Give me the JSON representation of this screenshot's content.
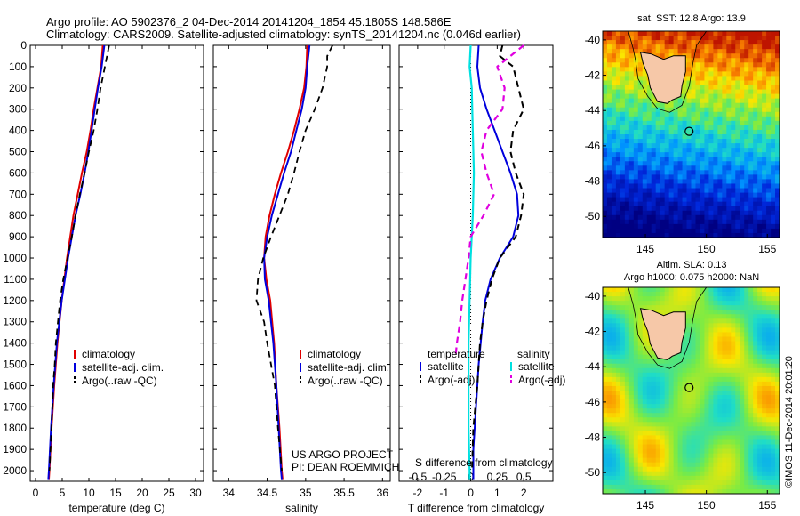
{
  "header": {
    "line1": "Argo profile: AO 5902376_2 04-Dec-2014 20141204_1854 45.1805S 148.586E",
    "line2": "Climatology: CARS2009. Satellite-adjusted climatology: synTS_20141204.nc (0.046d earlier)"
  },
  "depth_ticks": [
    0,
    100,
    200,
    300,
    400,
    500,
    600,
    700,
    800,
    900,
    1000,
    1100,
    1200,
    1300,
    1400,
    1500,
    1600,
    1700,
    1800,
    1900,
    2000
  ],
  "colors": {
    "climatology": "#e00000",
    "satellite": "#0000dd",
    "argo": "#000000",
    "sat_cyan": "#00e0e0",
    "argo_magenta": "#e000e0",
    "land": "#f6c8a8"
  },
  "chart_data": [
    {
      "id": "temperature",
      "type": "line",
      "xlabel": "temperature (deg C)",
      "xlim": [
        -1,
        31.5
      ],
      "ylim": [
        0,
        2050
      ],
      "y_reversed": true,
      "xticks": [
        0,
        5,
        10,
        15,
        20,
        25,
        30
      ],
      "legend": [
        "climatology",
        "satellite-adj. clim.",
        "Argo(..raw -QC)"
      ],
      "series": [
        {
          "name": "climatology",
          "depth": [
            0,
            100,
            200,
            300,
            400,
            500,
            600,
            700,
            800,
            900,
            1000,
            1200,
            1400,
            1600,
            1800,
            2000,
            2040
          ],
          "values": [
            12.6,
            12.3,
            11.6,
            10.9,
            10.3,
            9.6,
            8.7,
            7.9,
            7.1,
            6.5,
            5.9,
            4.9,
            4.1,
            3.5,
            3.0,
            2.6,
            2.5
          ]
        },
        {
          "name": "satellite-adj. clim.",
          "depth": [
            0,
            100,
            200,
            300,
            400,
            500,
            600,
            700,
            800,
            900,
            1000,
            1200,
            1400,
            1600,
            1800,
            2000,
            2040
          ],
          "values": [
            12.9,
            12.4,
            11.7,
            11.1,
            10.5,
            9.9,
            9.2,
            8.4,
            7.5,
            6.8,
            6.1,
            4.9,
            4.0,
            3.4,
            2.9,
            2.5,
            2.4
          ]
        },
        {
          "name": "Argo(..raw -QC)",
          "depth": [
            0,
            50,
            100,
            200,
            300,
            400,
            500,
            600,
            700,
            800,
            900,
            1000,
            1100,
            1200,
            1300,
            1400,
            1500,
            1600,
            1800,
            2000
          ],
          "values": [
            13.8,
            13.4,
            13.0,
            12.2,
            11.6,
            10.9,
            10.0,
            9.2,
            8.3,
            7.5,
            6.8,
            6.0,
            5.2,
            4.6,
            4.2,
            3.8,
            3.6,
            3.3,
            3.0,
            2.6
          ]
        }
      ]
    },
    {
      "id": "salinity",
      "type": "line",
      "xlabel": "salinity",
      "xlim": [
        33.8,
        36.1
      ],
      "ylim": [
        0,
        2050
      ],
      "y_reversed": true,
      "xticks": [
        34,
        34.5,
        35,
        35.5,
        36
      ],
      "legend": [
        "climatology",
        "satellite-adj. clim.",
        "Argo(..raw -QC)"
      ],
      "annotation": [
        "US ARGO PROJECT",
        "PI: DEAN ROEMMICH"
      ],
      "series": [
        {
          "name": "climatology",
          "depth": [
            0,
            100,
            200,
            300,
            400,
            500,
            600,
            700,
            800,
            900,
            1000,
            1100,
            1200,
            1400,
            1600,
            1800,
            2000,
            2040
          ],
          "values": [
            35.02,
            35.01,
            34.98,
            34.92,
            34.85,
            34.77,
            34.68,
            34.6,
            34.53,
            34.48,
            34.46,
            34.49,
            34.54,
            34.59,
            34.62,
            34.66,
            34.69,
            34.7
          ]
        },
        {
          "name": "satellite-adj. clim.",
          "depth": [
            0,
            100,
            200,
            300,
            400,
            500,
            600,
            700,
            800,
            900,
            1000,
            1100,
            1200,
            1400,
            1600,
            1800,
            2000,
            2040
          ],
          "values": [
            35.05,
            35.02,
            35.0,
            34.95,
            34.88,
            34.81,
            34.72,
            34.64,
            34.56,
            34.5,
            34.46,
            34.47,
            34.52,
            34.58,
            34.62,
            34.65,
            34.68,
            34.69
          ]
        },
        {
          "name": "Argo(..raw -QC)",
          "depth": [
            0,
            50,
            100,
            200,
            300,
            400,
            500,
            600,
            700,
            800,
            900,
            1000,
            1100,
            1200,
            1300,
            1400,
            1500,
            1600,
            1800,
            2000
          ],
          "values": [
            35.35,
            35.28,
            35.28,
            35.22,
            35.12,
            35.0,
            34.92,
            34.85,
            34.77,
            34.66,
            34.55,
            34.45,
            34.38,
            34.36,
            34.46,
            34.5,
            34.55,
            34.6,
            34.64,
            34.69
          ]
        }
      ]
    },
    {
      "id": "difference",
      "type": "line",
      "xlabel": "T difference from climatology",
      "xlabel_top": "S difference from climatology",
      "xlim": [
        -2.7,
        3.1
      ],
      "ylim": [
        0,
        2050
      ],
      "y_reversed": true,
      "xticks": [
        -2,
        -1,
        0,
        1,
        2
      ],
      "xticks_labels": [
        "-2",
        "-1",
        "0",
        "1",
        "2"
      ],
      "sticks": [
        -0.5,
        -0.25,
        0,
        0.25,
        0.5
      ],
      "sticks_labels": [
        "-0.5",
        "-0.25",
        "0",
        "0.25",
        "0.5"
      ],
      "s_scale": 4,
      "legend_temperature": {
        "title": "temperature",
        "items": [
          "satellite",
          "Argo(-adj)"
        ]
      },
      "legend_salinity": {
        "title": "salinity",
        "items": [
          "satellite",
          "Argo(-adj)"
        ]
      },
      "series": [
        {
          "name": "T satellite",
          "depth": [
            0,
            100,
            200,
            300,
            400,
            500,
            600,
            700,
            800,
            900,
            1000,
            1100,
            1200,
            1300,
            1500,
            1700,
            1900,
            2040
          ],
          "values": [
            0.3,
            0.25,
            0.35,
            0.6,
            0.9,
            1.2,
            1.5,
            1.75,
            1.8,
            1.6,
            1.1,
            0.75,
            0.55,
            0.45,
            0.3,
            0.2,
            0.1,
            0.1
          ]
        },
        {
          "name": "T Argo(-adj)",
          "depth": [
            0,
            50,
            100,
            200,
            300,
            400,
            500,
            600,
            700,
            800,
            900,
            1000,
            1100,
            1200,
            1300,
            1400,
            1500,
            1600,
            1800,
            2000
          ],
          "values": [
            1.2,
            1.1,
            1.6,
            1.8,
            2.0,
            1.6,
            1.5,
            1.7,
            2.0,
            1.9,
            1.7,
            1.1,
            0.8,
            0.6,
            0.45,
            0.35,
            0.3,
            0.25,
            0.1,
            0.05
          ]
        },
        {
          "name": "S satellite",
          "depth": [
            0,
            100,
            200,
            400,
            600,
            800,
            1000,
            1200,
            1400,
            1600,
            1800,
            2000,
            2040
          ],
          "values": [
            0.0,
            -0.01,
            0.01,
            0.02,
            0.03,
            0.02,
            0.0,
            -0.01,
            -0.02,
            -0.02,
            -0.02,
            -0.01,
            -0.01
          ]
        },
        {
          "name": "S Argo(-adj)",
          "depth": [
            0,
            100,
            200,
            300,
            400,
            500,
            600,
            700,
            800,
            900,
            1000,
            1100,
            1200,
            1300,
            1400,
            1450
          ],
          "values": [
            0.5,
            0.25,
            0.32,
            0.3,
            0.15,
            0.1,
            0.15,
            0.22,
            0.12,
            0.0,
            -0.02,
            -0.05,
            -0.08,
            -0.1,
            -0.13,
            -0.14
          ]
        }
      ]
    },
    {
      "id": "sst_map",
      "type": "heatmap",
      "title": "sat. SST: 12.8 Argo: 13.9",
      "xlim": [
        141.5,
        156
      ],
      "ylim": [
        -51.2,
        -39.5
      ],
      "xticks": [
        145,
        150,
        155
      ],
      "yticks": [
        -40,
        -42,
        -44,
        -46,
        -48,
        -50
      ],
      "argo_position": {
        "lon": 148.586,
        "lat": -45.1805
      }
    },
    {
      "id": "sla_map",
      "type": "heatmap",
      "title_lines": [
        "Altim. SLA: 0.13",
        "Argo h1000: 0.075 h2000: NaN"
      ],
      "xlim": [
        141.5,
        156
      ],
      "ylim": [
        -51.2,
        -39.5
      ],
      "xticks": [
        145,
        150,
        155
      ],
      "yticks": [
        -40,
        -42,
        -44,
        -46,
        -48,
        -50
      ],
      "argo_position": {
        "lon": 148.586,
        "lat": -45.1805
      }
    }
  ],
  "footer_vertical": "©IMOS 11-Dec-2014 20:01:20"
}
